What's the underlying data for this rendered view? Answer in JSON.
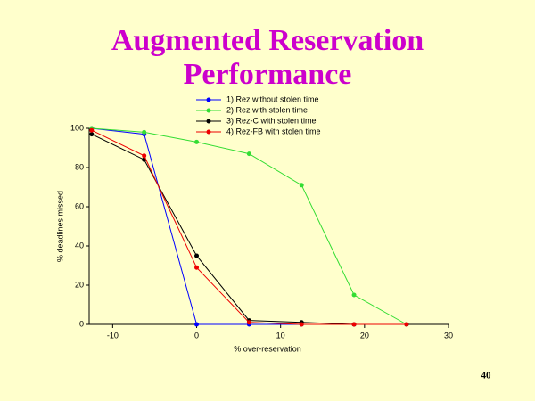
{
  "slide_title": "Augmented Reservation Performance",
  "page_number": "40",
  "chart_data": {
    "type": "line",
    "xlabel": "% over-reservation",
    "ylabel": "% deadlines missed",
    "x": [
      -12.5,
      -6.25,
      0,
      6.25,
      12.5,
      18.75,
      25
    ],
    "series": [
      {
        "name": "1) Rez without stolen time",
        "color": "#0000ff",
        "values": [
          100,
          97,
          0,
          0,
          0,
          0,
          0
        ]
      },
      {
        "name": "2) Rez with stolen time",
        "color": "#33dd33",
        "values": [
          100,
          98,
          93,
          87,
          71,
          15,
          0
        ]
      },
      {
        "name": "3) Rez-C with stolen time",
        "color": "#000000",
        "values": [
          97,
          84,
          35,
          2,
          1,
          0,
          0
        ]
      },
      {
        "name": "4) Rez-FB with stolen time",
        "color": "#ee0000",
        "values": [
          99,
          86,
          29,
          1,
          0,
          0,
          0
        ]
      }
    ],
    "xlim": [
      -12.8,
      30
    ],
    "xticks": [
      -10,
      0,
      10,
      20,
      30
    ],
    "ylim": [
      0,
      100
    ],
    "yticks": [
      0,
      20,
      40,
      60,
      80,
      100
    ],
    "legend": "top",
    "grid": false
  }
}
